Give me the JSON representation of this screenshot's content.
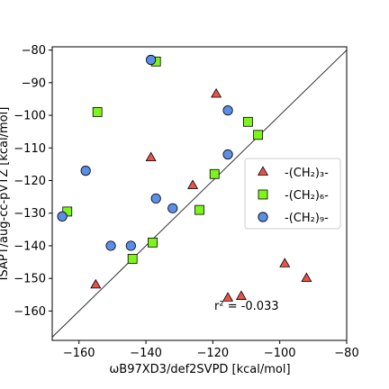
{
  "chart_data": {
    "type": "scatter",
    "xlabel": "ωB97XD3/def2SVPD [kcal/mol]",
    "ylabel": "ISAPT/aug-cc-pVTZ [kcal/mol]",
    "xlim": [
      -168,
      -80
    ],
    "ylim": [
      -169,
      -79
    ],
    "xticks": [
      -160,
      -140,
      -120,
      -100,
      -80
    ],
    "yticks": [
      -80,
      -90,
      -100,
      -110,
      -120,
      -130,
      -140,
      -150,
      -160
    ],
    "legend_position": "center-right",
    "parity_line": true,
    "annotation": "r² = -0.033",
    "series": [
      {
        "name": "-(CH₂)₃-",
        "marker": "triangle",
        "color": "#e8534a",
        "points": [
          {
            "x": -155,
            "y": -152
          },
          {
            "x": -138.5,
            "y": -113
          },
          {
            "x": -126,
            "y": -121.5
          },
          {
            "x": -119,
            "y": -93.5
          },
          {
            "x": -115.5,
            "y": -156
          },
          {
            "x": -111.5,
            "y": -155.5
          },
          {
            "x": -98.5,
            "y": -145.5
          },
          {
            "x": -92,
            "y": -150
          }
        ]
      },
      {
        "name": "-(CH₂)₆-",
        "marker": "square",
        "color": "#7ef51a",
        "points": [
          {
            "x": -163.5,
            "y": -129.5
          },
          {
            "x": -154.5,
            "y": -99
          },
          {
            "x": -144,
            "y": -144
          },
          {
            "x": -138,
            "y": -139
          },
          {
            "x": -137,
            "y": -83.5
          },
          {
            "x": -124,
            "y": -129
          },
          {
            "x": -119.5,
            "y": -118
          },
          {
            "x": -109.5,
            "y": -102
          },
          {
            "x": -106.5,
            "y": -106
          }
        ]
      },
      {
        "name": "-(CH₂)₉-",
        "marker": "circle",
        "color": "#5b8ee6",
        "points": [
          {
            "x": -165,
            "y": -131
          },
          {
            "x": -158,
            "y": -117
          },
          {
            "x": -150.5,
            "y": -140
          },
          {
            "x": -144.5,
            "y": -140
          },
          {
            "x": -138.5,
            "y": -83
          },
          {
            "x": -137,
            "y": -125.5
          },
          {
            "x": -132,
            "y": -128.5
          },
          {
            "x": -115.5,
            "y": -98.5
          },
          {
            "x": -115.5,
            "y": -112
          }
        ]
      }
    ]
  }
}
